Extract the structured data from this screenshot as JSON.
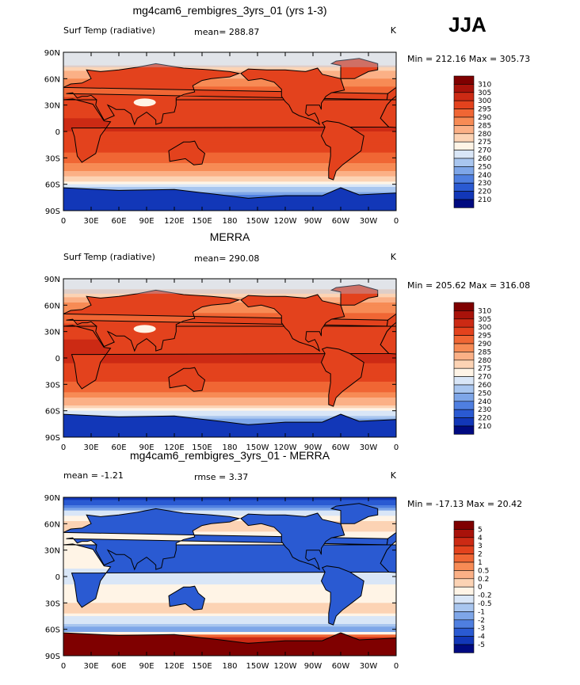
{
  "season_label": "JJA",
  "chart_data": [
    {
      "type": "heatmap",
      "title": "mg4cam6_rembigres_3yrs_01 (yrs 1-3)",
      "left_label": "Surf Temp (radiative)",
      "center_label": "mean=  288.87",
      "right_label": "K",
      "stats_label": "Min = 212.16 Max = 305.73",
      "mean": 288.87,
      "min": 212.16,
      "max": 305.73,
      "x_ticks": [
        "0",
        "30E",
        "60E",
        "90E",
        "120E",
        "150E",
        "180",
        "150W",
        "120W",
        "90W",
        "60W",
        "30W",
        "0"
      ],
      "y_ticks": [
        "90N",
        "60N",
        "30N",
        "0",
        "30S",
        "60S",
        "90S"
      ],
      "colorbar": {
        "labels": [
          "310",
          "305",
          "300",
          "295",
          "290",
          "285",
          "280",
          "275",
          "270",
          "260",
          "250",
          "240",
          "230",
          "220",
          "210"
        ],
        "colors": [
          "#7f0000",
          "#a8120a",
          "#cc2a14",
          "#e3421d",
          "#f06634",
          "#f78b55",
          "#fbb086",
          "#fcd3b4",
          "#fff4e6",
          "#d9e6f7",
          "#a9c6ef",
          "#7ea6e8",
          "#4f7fe0",
          "#2a5ad2",
          "#1237b8",
          "#000a80"
        ]
      },
      "ocean_bands": [
        {
          "lat": 90,
          "value": 270
        },
        {
          "lat": 75,
          "value": 275
        },
        {
          "lat": 65,
          "value": 283
        },
        {
          "lat": 50,
          "value": 290
        },
        {
          "lat": 35,
          "value": 296
        },
        {
          "lat": 15,
          "value": 300
        },
        {
          "lat": 0,
          "value": 300
        },
        {
          "lat": -15,
          "value": 297
        },
        {
          "lat": -30,
          "value": 293
        },
        {
          "lat": -45,
          "value": 285
        },
        {
          "lat": -55,
          "value": 277
        },
        {
          "lat": -62,
          "value": 265
        },
        {
          "lat": -70,
          "value": 245
        },
        {
          "lat": -80,
          "value": 230
        },
        {
          "lat": -90,
          "value": 220
        }
      ]
    },
    {
      "type": "heatmap",
      "title": "MERRA",
      "left_label": "Surf Temp (radiative)",
      "center_label": "mean=  290.08",
      "right_label": "K",
      "stats_label": "Min = 205.62 Max = 316.08",
      "mean": 290.08,
      "min": 205.62,
      "max": 316.08,
      "x_ticks": [
        "0",
        "30E",
        "60E",
        "90E",
        "120E",
        "150E",
        "180",
        "150W",
        "120W",
        "90W",
        "60W",
        "30W",
        "0"
      ],
      "y_ticks": [
        "90N",
        "60N",
        "30N",
        "0",
        "30S",
        "60S",
        "90S"
      ],
      "colorbar": {
        "labels": [
          "310",
          "305",
          "300",
          "295",
          "290",
          "285",
          "280",
          "275",
          "270",
          "260",
          "250",
          "240",
          "230",
          "220",
          "210"
        ],
        "colors": [
          "#7f0000",
          "#a8120a",
          "#cc2a14",
          "#e3421d",
          "#f06634",
          "#f78b55",
          "#fbb086",
          "#fcd3b4",
          "#fff4e6",
          "#d9e6f7",
          "#a9c6ef",
          "#7ea6e8",
          "#4f7fe0",
          "#2a5ad2",
          "#1237b8",
          "#000a80"
        ]
      },
      "ocean_bands": [
        {
          "lat": 90,
          "value": 272
        },
        {
          "lat": 75,
          "value": 276
        },
        {
          "lat": 65,
          "value": 284
        },
        {
          "lat": 50,
          "value": 291
        },
        {
          "lat": 35,
          "value": 297
        },
        {
          "lat": 15,
          "value": 301
        },
        {
          "lat": 0,
          "value": 301
        },
        {
          "lat": -15,
          "value": 298
        },
        {
          "lat": -30,
          "value": 294
        },
        {
          "lat": -45,
          "value": 286
        },
        {
          "lat": -55,
          "value": 278
        },
        {
          "lat": -62,
          "value": 268
        },
        {
          "lat": -70,
          "value": 250
        },
        {
          "lat": -80,
          "value": 232
        },
        {
          "lat": -90,
          "value": 222
        }
      ]
    },
    {
      "type": "heatmap",
      "title": "mg4cam6_rembigres_3yrs_01 - MERRA",
      "left_label": "mean =   -1.21",
      "center_label": "rmse =    3.37",
      "right_label": "K",
      "stats_label": "Min = -17.13 Max =  20.42",
      "mean": -1.21,
      "rmse": 3.37,
      "min": -17.13,
      "max": 20.42,
      "x_ticks": [
        "0",
        "30E",
        "60E",
        "90E",
        "120E",
        "150E",
        "180",
        "150W",
        "120W",
        "90W",
        "60W",
        "30W",
        "0"
      ],
      "y_ticks": [
        "90N",
        "60N",
        "30N",
        "0",
        "30S",
        "60S",
        "90S"
      ],
      "colorbar": {
        "labels": [
          "5",
          "4",
          "3",
          "2",
          "1",
          "0.5",
          "0.2",
          "0",
          "-0.2",
          "-0.5",
          "-1",
          "-2",
          "-3",
          "-4",
          "-5"
        ],
        "colors": [
          "#7f0000",
          "#a8120a",
          "#cc2a14",
          "#e3421d",
          "#f06634",
          "#f78b55",
          "#fbb086",
          "#fcd3b4",
          "#fff4e6",
          "#d9e6f7",
          "#a9c6ef",
          "#7ea6e8",
          "#4f7fe0",
          "#2a5ad2",
          "#1237b8",
          "#000a80"
        ]
      },
      "ocean_bands": [
        {
          "lat": 90,
          "value": -5
        },
        {
          "lat": 82,
          "value": -3
        },
        {
          "lat": 75,
          "value": -0.5
        },
        {
          "lat": 60,
          "value": 0.1
        },
        {
          "lat": 40,
          "value": -0.1
        },
        {
          "lat": 20,
          "value": -0.1
        },
        {
          "lat": 0,
          "value": -0.3
        },
        {
          "lat": -20,
          "value": -0.1
        },
        {
          "lat": -40,
          "value": 0.1
        },
        {
          "lat": -55,
          "value": -0.6
        },
        {
          "lat": -62,
          "value": -1.5
        },
        {
          "lat": -70,
          "value": 3
        },
        {
          "lat": -80,
          "value": 5
        },
        {
          "lat": -90,
          "value": 5
        }
      ]
    }
  ]
}
